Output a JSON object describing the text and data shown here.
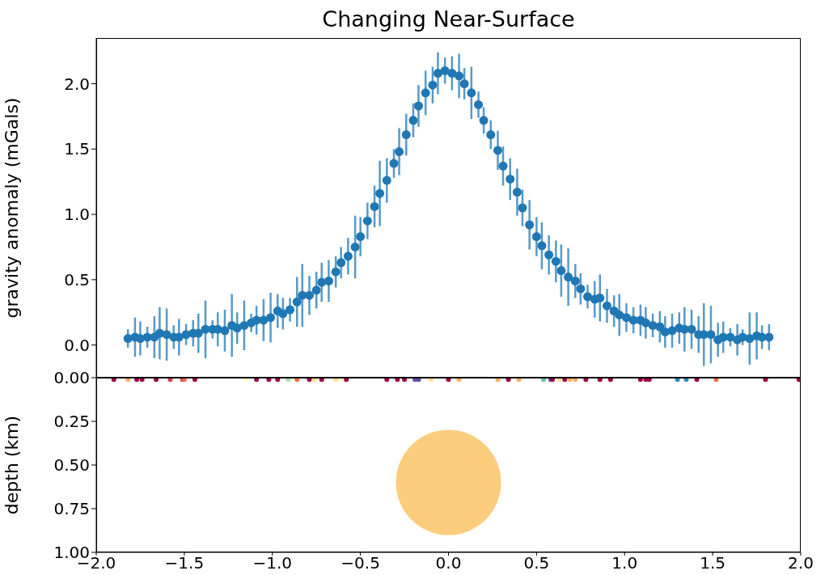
{
  "chart_data": [
    {
      "type": "scatter",
      "title": "Changing Near-Surface",
      "ylabel": "gravity anomaly (mGals)",
      "color": "#1f77b4",
      "marker": "circle",
      "tick_labels": "y",
      "x": [
        -1.82,
        -1.78,
        -1.75,
        -1.71,
        -1.67,
        -1.64,
        -1.6,
        -1.56,
        -1.53,
        -1.49,
        -1.45,
        -1.42,
        -1.38,
        -1.34,
        -1.31,
        -1.27,
        -1.23,
        -1.2,
        -1.16,
        -1.12,
        -1.09,
        -1.05,
        -1.01,
        -0.97,
        -0.94,
        -0.9,
        -0.86,
        -0.83,
        -0.79,
        -0.75,
        -0.72,
        -0.68,
        -0.64,
        -0.61,
        -0.57,
        -0.53,
        -0.5,
        -0.46,
        -0.42,
        -0.39,
        -0.35,
        -0.31,
        -0.28,
        -0.24,
        -0.2,
        -0.17,
        -0.13,
        -0.09,
        -0.06,
        -0.02,
        0.02,
        0.06,
        0.09,
        0.13,
        0.17,
        0.2,
        0.24,
        0.28,
        0.31,
        0.35,
        0.39,
        0.42,
        0.46,
        0.5,
        0.53,
        0.57,
        0.61,
        0.64,
        0.68,
        0.72,
        0.75,
        0.79,
        0.83,
        0.86,
        0.9,
        0.94,
        0.97,
        1.01,
        1.05,
        1.09,
        1.12,
        1.16,
        1.2,
        1.23,
        1.27,
        1.31,
        1.34,
        1.38,
        1.42,
        1.45,
        1.49,
        1.53,
        1.56,
        1.6,
        1.64,
        1.67,
        1.71,
        1.75,
        1.78,
        1.82
      ],
      "values": [
        0.05,
        0.06,
        0.05,
        0.06,
        0.06,
        0.09,
        0.08,
        0.06,
        0.06,
        0.08,
        0.09,
        0.09,
        0.12,
        0.12,
        0.12,
        0.11,
        0.15,
        0.13,
        0.15,
        0.17,
        0.19,
        0.19,
        0.21,
        0.26,
        0.24,
        0.27,
        0.33,
        0.38,
        0.38,
        0.42,
        0.48,
        0.49,
        0.56,
        0.63,
        0.68,
        0.75,
        0.83,
        0.95,
        1.06,
        1.16,
        1.26,
        1.39,
        1.48,
        1.61,
        1.72,
        1.83,
        1.93,
        1.99,
        2.08,
        2.1,
        2.08,
        2.06,
        2.0,
        1.93,
        1.84,
        1.72,
        1.61,
        1.49,
        1.37,
        1.27,
        1.17,
        1.05,
        0.92,
        0.83,
        0.76,
        0.69,
        0.64,
        0.57,
        0.52,
        0.49,
        0.43,
        0.37,
        0.35,
        0.36,
        0.3,
        0.26,
        0.23,
        0.21,
        0.19,
        0.19,
        0.17,
        0.15,
        0.14,
        0.1,
        0.11,
        0.13,
        0.12,
        0.12,
        0.08,
        0.08,
        0.08,
        0.04,
        0.06,
        0.06,
        0.04,
        0.06,
        0.05,
        0.07,
        0.06,
        0.06
      ],
      "errors": [
        0.07,
        0.15,
        0.13,
        0.08,
        0.16,
        0.2,
        0.2,
        0.09,
        0.14,
        0.08,
        0.1,
        0.15,
        0.22,
        0.07,
        0.13,
        0.16,
        0.24,
        0.12,
        0.19,
        0.07,
        0.11,
        0.16,
        0.19,
        0.13,
        0.12,
        0.09,
        0.19,
        0.24,
        0.15,
        0.14,
        0.15,
        0.16,
        0.12,
        0.12,
        0.14,
        0.24,
        0.15,
        0.14,
        0.16,
        0.25,
        0.17,
        0.11,
        0.18,
        0.16,
        0.13,
        0.16,
        0.17,
        0.14,
        0.16,
        0.1,
        0.13,
        0.17,
        0.12,
        0.2,
        0.1,
        0.1,
        0.11,
        0.15,
        0.15,
        0.16,
        0.18,
        0.14,
        0.19,
        0.15,
        0.18,
        0.15,
        0.16,
        0.2,
        0.22,
        0.13,
        0.12,
        0.09,
        0.14,
        0.18,
        0.13,
        0.12,
        0.16,
        0.11,
        0.1,
        0.12,
        0.12,
        0.09,
        0.12,
        0.12,
        0.13,
        0.12,
        0.17,
        0.15,
        0.14,
        0.24,
        0.22,
        0.13,
        0.12,
        0.07,
        0.12,
        0.06,
        0.2,
        0.18,
        0.09,
        0.1
      ],
      "xlim": [
        -2,
        2
      ],
      "ylim": [
        -0.25,
        2.35
      ],
      "yticks": [
        {
          "value": 0,
          "label": "0.0"
        },
        {
          "value": 0.5,
          "label": "0.5"
        },
        {
          "value": 1,
          "label": "1.0"
        },
        {
          "value": 1.5,
          "label": "1.5"
        },
        {
          "value": 2,
          "label": "2.0"
        }
      ]
    },
    {
      "type": "scatter",
      "ylabel": "depth (km)",
      "marker": "circle",
      "xlim": [
        -2,
        2
      ],
      "ylim": [
        1,
        0
      ],
      "xticks": [
        {
          "value": -2,
          "label": "−2.0"
        },
        {
          "value": -1.5,
          "label": "−1.5"
        },
        {
          "value": -1,
          "label": "−1.0"
        },
        {
          "value": -0.5,
          "label": "−0.5"
        },
        {
          "value": 0,
          "label": "0.0"
        },
        {
          "value": 0.5,
          "label": "0.5"
        },
        {
          "value": 1,
          "label": "1.0"
        },
        {
          "value": 1.5,
          "label": "1.5"
        },
        {
          "value": 2,
          "label": "2.0"
        }
      ],
      "yticks": [
        {
          "value": 0,
          "label": "0.00"
        },
        {
          "value": 0.25,
          "label": "0.25"
        },
        {
          "value": 0.5,
          "label": "0.50"
        },
        {
          "value": 0.75,
          "label": "0.75"
        },
        {
          "value": 1,
          "label": "1.00"
        }
      ],
      "series": [
        {
          "x": [
            -1.9,
            -1.82,
            -1.77,
            -1.74,
            -1.66,
            -1.58,
            -1.51,
            -1.5,
            -1.44,
            -1.15,
            -1.09,
            -1.02,
            -0.97,
            -0.91,
            -0.86,
            -0.79,
            -0.76,
            -0.72,
            -0.64,
            -0.61,
            -0.58,
            -0.35,
            -0.29,
            -0.25,
            -0.19,
            -0.17,
            -0.1,
            0.0,
            0.06,
            0.28,
            0.34,
            0.4,
            0.54,
            0.58,
            0.59,
            0.63,
            0.66,
            0.69,
            0.72,
            0.78,
            0.86,
            0.92,
            1.09,
            1.12,
            1.14,
            1.3,
            1.35,
            1.41,
            1.52,
            1.8,
            1.99
          ],
          "values": [
            0.01,
            0.01,
            0.01,
            0.01,
            0.01,
            0.01,
            0.01,
            0.01,
            0.01,
            0.01,
            0.01,
            0.01,
            0.01,
            0.01,
            0.01,
            0.01,
            0.01,
            0.01,
            0.01,
            0.01,
            0.01,
            0.01,
            0.01,
            0.01,
            0.01,
            0.01,
            0.01,
            0.01,
            0.01,
            0.01,
            0.01,
            0.01,
            0.01,
            0.01,
            0.01,
            0.01,
            0.01,
            0.01,
            0.01,
            0.01,
            0.01,
            0.01,
            0.01,
            0.01,
            0.01,
            0.01,
            0.01,
            0.01,
            0.01,
            0.01,
            0.01
          ],
          "colors": [
            "#9e0142",
            "#fdae61",
            "#9e0142",
            "#9e0142",
            "#9e0142",
            "#d53e4f",
            "#d53e4f",
            "#f46d43",
            "#9e0142",
            "#ffffbf",
            "#9e0142",
            "#9e0142",
            "#9e0142",
            "#abdda4",
            "#f46d43",
            "#9e0142",
            "#fee08b",
            "#9e0142",
            "#fee08b",
            "#ffffbf",
            "#9e0142",
            "#9e0142",
            "#9e0142",
            "#9e0142",
            "#5e4fa2",
            "#5e4fa2",
            "#fee08b",
            "#9e0142",
            "#fdae61",
            "#fdae61",
            "#9e0142",
            "#fdae61",
            "#66c2a5",
            "#5e4fa2",
            "#9e0142",
            "#fee08b",
            "#9e0142",
            "#fdae61",
            "#fdae61",
            "#9e0142",
            "#9e0142",
            "#9e0142",
            "#9e0142",
            "#9e0142",
            "#9e0142",
            "#3288bd",
            "#3288bd",
            "#9e0142",
            "#f46d43",
            "#9e0142",
            "#9e0142"
          ]
        },
        {
          "type": "bubble",
          "x": [
            0
          ],
          "values": [
            0.6
          ],
          "sizes": [
            1
          ],
          "color": "#fccd7c"
        }
      ]
    }
  ]
}
